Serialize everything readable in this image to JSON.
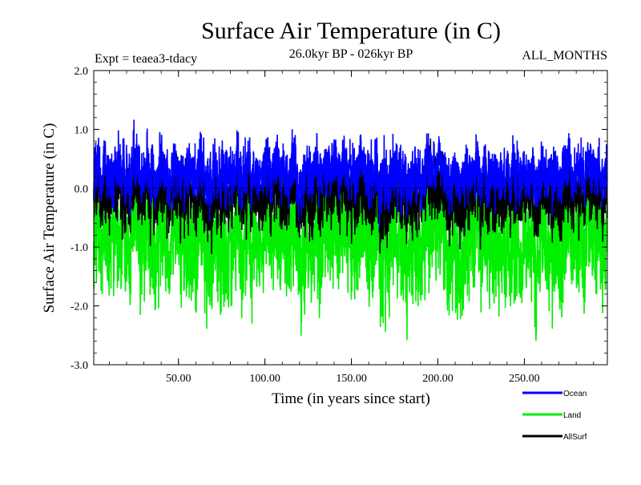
{
  "chart_data": {
    "type": "line",
    "title": "Surface Air Temperature (in C)",
    "subtitle": "26.0kyr BP - 026kyr BP",
    "experiment": "Expt = teaea3-tdacy",
    "period": "ALL_MONTHS",
    "xlabel": "Time (in years since start)",
    "ylabel": "Surface Air Temperature (in C)",
    "xlim": [
      1,
      298
    ],
    "ylim": [
      -3.0,
      2.0
    ],
    "xticks": [
      50,
      100,
      150,
      200,
      250
    ],
    "xtick_labels": [
      "50.00",
      "100.00",
      "150.00",
      "200.00",
      "250.00"
    ],
    "yticks": [
      -3.0,
      -2.0,
      -1.0,
      0.0,
      1.0,
      2.0
    ],
    "ytick_labels": [
      "-3.0",
      "-2.0",
      "-1.0",
      "0.0",
      "1.0",
      "2.0"
    ],
    "reference_line": 0.0,
    "series": [
      {
        "name": "Land",
        "color": "#00ee00",
        "mean": -0.9,
        "amplitude": 0.45,
        "values": []
      },
      {
        "name": "AllSurf",
        "color": "#000000",
        "mean": -0.15,
        "amplitude": 0.25,
        "values": []
      },
      {
        "name": "Ocean",
        "color": "#0000ff",
        "mean": 0.25,
        "amplitude": 0.22,
        "values": []
      }
    ],
    "legend": [
      {
        "name": "Ocean",
        "color": "#0000ff"
      },
      {
        "name": "Land",
        "color": "#00ee00"
      },
      {
        "name": "AllSurf",
        "color": "#000000"
      }
    ],
    "legend_position": "bottom-right"
  }
}
